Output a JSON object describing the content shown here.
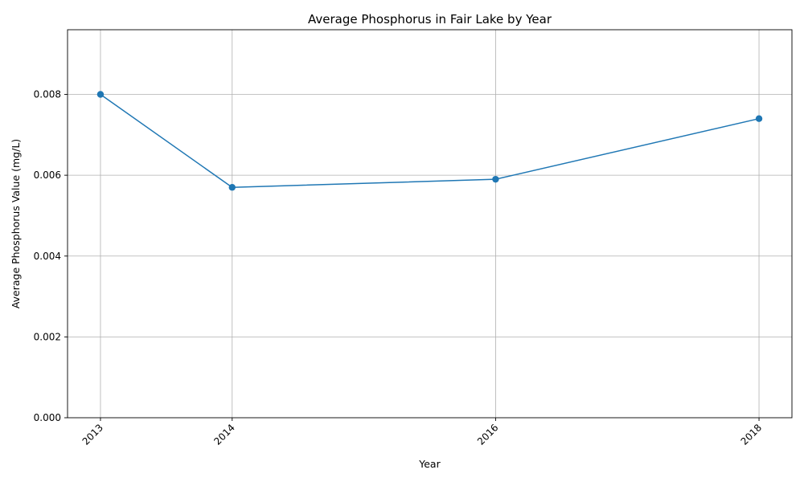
{
  "chart_data": {
    "type": "line",
    "title": "Average Phosphorus in Fair Lake by Year",
    "xlabel": "Year",
    "ylabel": "Average Phosphorus Value (mg/L)",
    "x": [
      2013,
      2014,
      2016,
      2018
    ],
    "series": [
      {
        "values": [
          0.008,
          0.0057,
          0.0059,
          0.0074
        ],
        "color": "#1f77b4",
        "marker": "circle"
      }
    ],
    "xticks": [
      "2013",
      "2014",
      "2016",
      "2018"
    ],
    "yticks": [
      "0.000",
      "0.002",
      "0.004",
      "0.006",
      "0.008"
    ],
    "ytick_values": [
      0,
      0.002,
      0.004,
      0.006,
      0.008
    ],
    "xlim": [
      2012.75,
      2018.25
    ],
    "ylim": [
      0,
      0.0096
    ],
    "grid": true,
    "xtick_rotation": "45"
  }
}
